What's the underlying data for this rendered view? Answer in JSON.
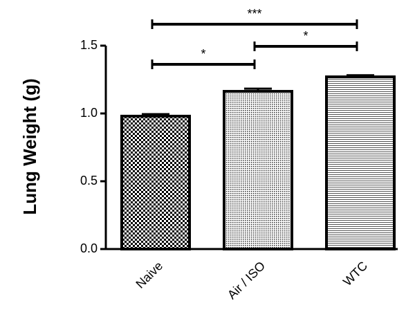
{
  "chart_data": {
    "type": "bar",
    "y_label": "Lung Weight (g)",
    "categories": [
      "Naive",
      "Air / ISO",
      "WTC"
    ],
    "values": [
      0.98,
      1.163,
      1.27
    ],
    "errors": [
      0.015,
      0.02,
      0.012
    ],
    "patterns": [
      "checker",
      "dots",
      "hlines"
    ],
    "color": "#000000",
    "ylim": [
      0,
      1.5
    ],
    "yticks": [
      {
        "value": 0,
        "label": "0.0"
      },
      0.5,
      {
        "value": 1,
        "label": "1.0"
      },
      1.5
    ],
    "annotations": [
      {
        "label": "*",
        "from": "Naive",
        "to": "Air / ISO"
      },
      {
        "label": "*",
        "from": "Air / ISO",
        "to": "WTC"
      },
      {
        "label": "***",
        "from": "Naive",
        "to": "WTC"
      }
    ]
  }
}
